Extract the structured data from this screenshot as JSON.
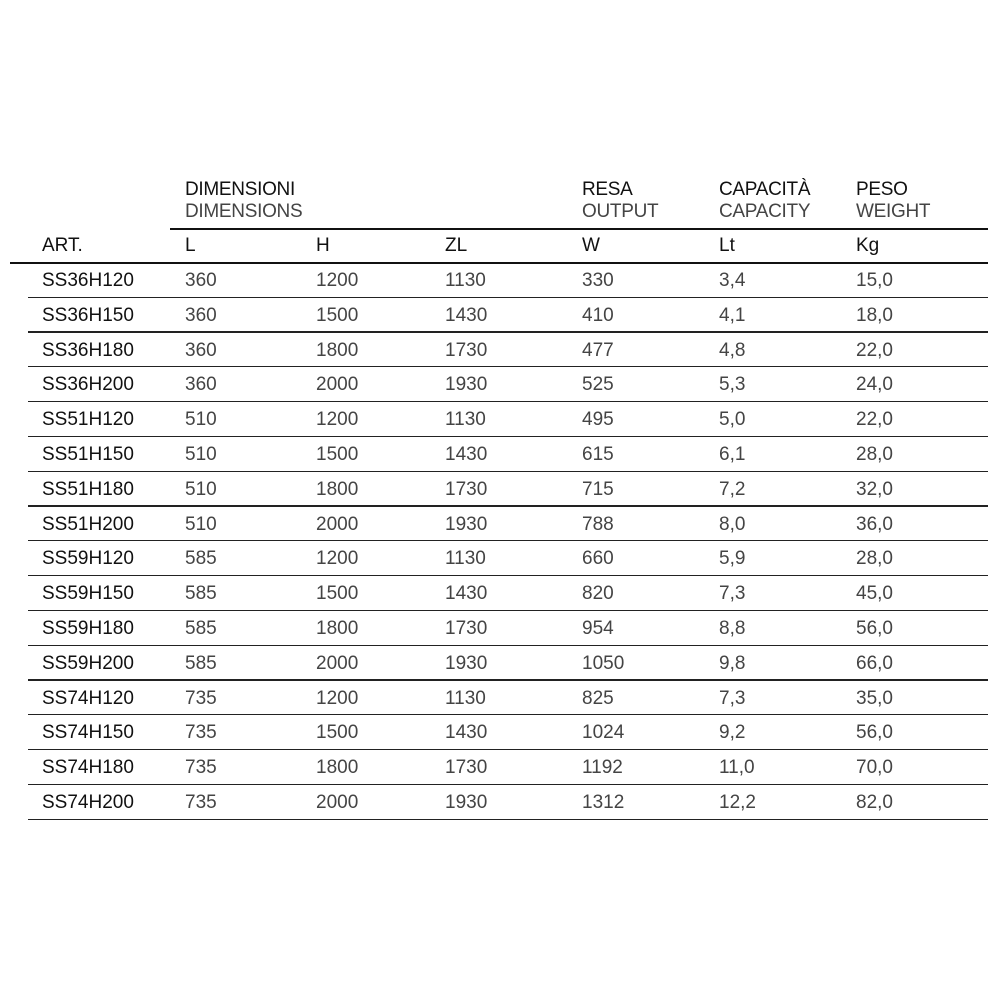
{
  "header": {
    "groups": [
      {
        "it": "DIMENSIONI",
        "en": "DIMENSIONS"
      },
      {
        "it": "RESA",
        "en": "OUTPUT"
      },
      {
        "it": "CAPACITÀ",
        "en": "CAPACITY"
      },
      {
        "it": "PESO",
        "en": "WEIGHT"
      }
    ],
    "columns": [
      "ART.",
      "L",
      "H",
      "ZL",
      "W",
      "Lt",
      "Kg"
    ]
  },
  "rows": [
    [
      "SS36H120",
      "360",
      "1200",
      "1130",
      "330",
      "3,4",
      "15,0"
    ],
    [
      "SS36H150",
      "360",
      "1500",
      "1430",
      "410",
      "4,1",
      "18,0"
    ],
    [
      "SS36H180",
      "360",
      "1800",
      "1730",
      "477",
      "4,8",
      "22,0"
    ],
    [
      "SS36H200",
      "360",
      "2000",
      "1930",
      "525",
      "5,3",
      "24,0"
    ],
    [
      "SS51H120",
      "510",
      "1200",
      "1130",
      "495",
      "5,0",
      "22,0"
    ],
    [
      "SS51H150",
      "510",
      "1500",
      "1430",
      "615",
      "6,1",
      "28,0"
    ],
    [
      "SS51H180",
      "510",
      "1800",
      "1730",
      "715",
      "7,2",
      "32,0"
    ],
    [
      "SS51H200",
      "510",
      "2000",
      "1930",
      "788",
      "8,0",
      "36,0"
    ],
    [
      "SS59H120",
      "585",
      "1200",
      "1130",
      "660",
      "5,9",
      "28,0"
    ],
    [
      "SS59H150",
      "585",
      "1500",
      "1430",
      "820",
      "7,3",
      "45,0"
    ],
    [
      "SS59H180",
      "585",
      "1800",
      "1730",
      "954",
      "8,8",
      "56,0"
    ],
    [
      "SS59H200",
      "585",
      "2000",
      "1930",
      "1050",
      "9,8",
      "66,0"
    ],
    [
      "SS74H120",
      "735",
      "1200",
      "1130",
      "825",
      "7,3",
      "35,0"
    ],
    [
      "SS74H150",
      "735",
      "1500",
      "1430",
      "1024",
      "9,2",
      "56,0"
    ],
    [
      "SS74H180",
      "735",
      "1800",
      "1730",
      "1192",
      "11,0",
      "70,0"
    ],
    [
      "SS74H200",
      "735",
      "2000",
      "1930",
      "1312",
      "12,2",
      "82,0"
    ]
  ]
}
